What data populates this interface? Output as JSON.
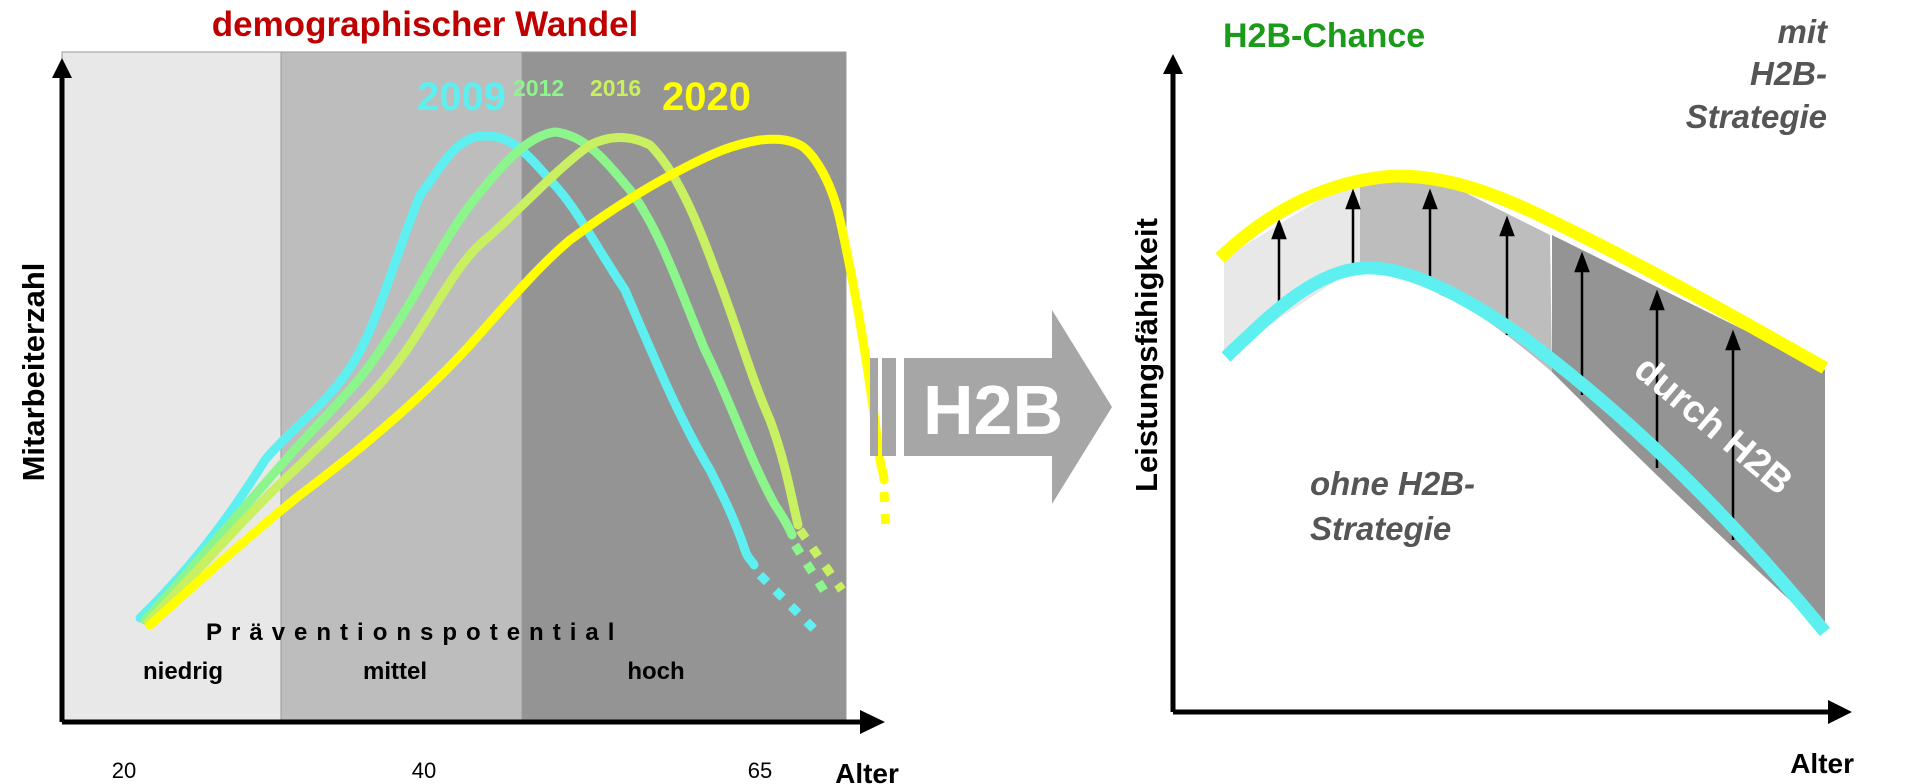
{
  "left": {
    "title": "demographischer Wandel",
    "ylabel": "Mitarbeiterzahl",
    "xlabel": "Alter",
    "ticks": [
      "20",
      "40",
      "65"
    ],
    "zone_caption": "Präventionspotential",
    "zones": [
      "niedrig",
      "mittel",
      "hoch"
    ],
    "years": [
      "2009",
      "2012",
      "2016",
      "2020"
    ]
  },
  "arrow": {
    "label": "H2B"
  },
  "right": {
    "title": "H2B-Chance",
    "ylabel": "Leistungsfähigkeit",
    "xlabel": "Alter",
    "with_label": [
      "mit",
      "H2B-",
      "Strategie"
    ],
    "without_label": [
      "ohne H2B-",
      "Strategie"
    ],
    "gain_label": "durch H2B"
  },
  "colors": {
    "title_red": "#c00000",
    "title_green": "#1a9b1a",
    "y2009": "#5ef0f0",
    "y2012": "#8cf58c",
    "y2016": "#c8f060",
    "y2020": "#ffff00",
    "zone_low": "#e8e8e8",
    "zone_mid": "#bdbdbd",
    "zone_high": "#949494",
    "gray_text": "#555555"
  }
}
